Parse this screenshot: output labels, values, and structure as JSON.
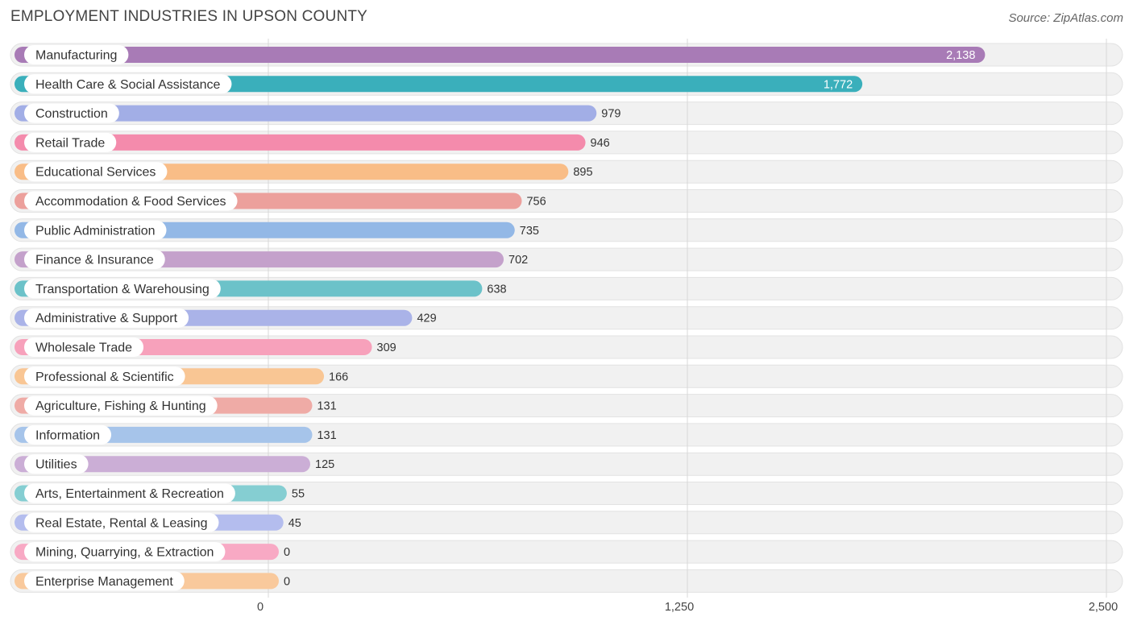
{
  "chart_data": {
    "type": "bar",
    "orientation": "horizontal",
    "title": "EMPLOYMENT INDUSTRIES IN UPSON COUNTY",
    "source": "Source: ZipAtlas.com",
    "categories": [
      "Manufacturing",
      "Health Care & Social Assistance",
      "Construction",
      "Retail Trade",
      "Educational Services",
      "Accommodation & Food Services",
      "Public Administration",
      "Finance & Insurance",
      "Transportation & Warehousing",
      "Administrative & Support",
      "Wholesale Trade",
      "Professional & Scientific",
      "Agriculture, Fishing & Hunting",
      "Information",
      "Utilities",
      "Arts, Entertainment & Recreation",
      "Real Estate, Rental & Leasing",
      "Mining, Quarrying, & Extraction",
      "Enterprise Management"
    ],
    "values": [
      2138,
      1772,
      979,
      946,
      895,
      756,
      735,
      702,
      638,
      429,
      309,
      166,
      131,
      131,
      125,
      55,
      45,
      0,
      0
    ],
    "value_labels": [
      "2,138",
      "1,772",
      "979",
      "946",
      "895",
      "756",
      "735",
      "702",
      "638",
      "429",
      "309",
      "166",
      "131",
      "131",
      "125",
      "55",
      "45",
      "0",
      "0"
    ],
    "colors": [
      "#a87bb6",
      "#3aafbb",
      "#a2aee6",
      "#f48bac",
      "#f9bd87",
      "#eca09c",
      "#93b8e6",
      "#c4a1cb",
      "#6cc2c9",
      "#aab3e8",
      "#f7a1bb",
      "#f9c694",
      "#efaba6",
      "#a6c4ea",
      "#cbaed6",
      "#85ced2",
      "#b4bdee",
      "#f8a9c4",
      "#f9c99c"
    ],
    "xlim": [
      0,
      2500
    ],
    "xticks": [
      0,
      1250,
      2500
    ],
    "xtick_labels": [
      "0",
      "1,250",
      "2,500"
    ],
    "grid": true,
    "xlabel": "",
    "ylabel": ""
  }
}
